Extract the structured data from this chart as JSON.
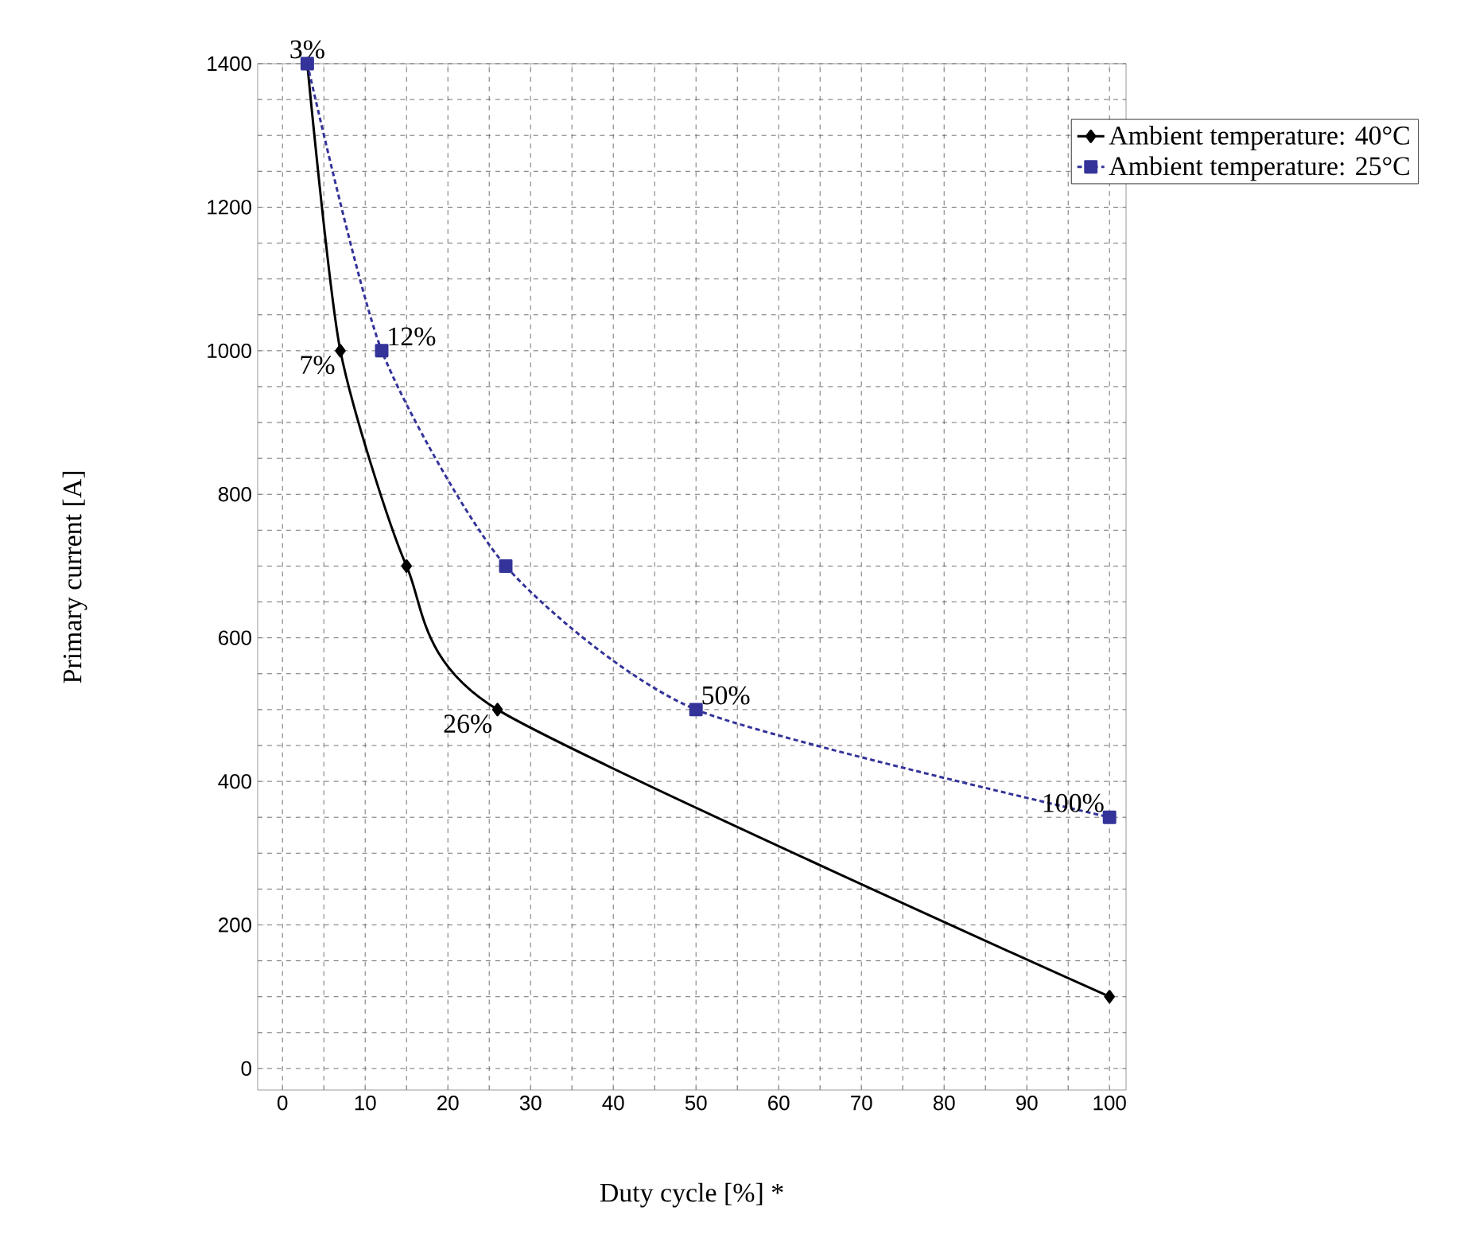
{
  "chart_data": {
    "type": "line",
    "xlabel": "Duty cycle [%] *",
    "ylabel": "Primary current [A]",
    "xlim": [
      -3,
      102
    ],
    "ylim": [
      -30,
      1400
    ],
    "xticks": [
      0,
      10,
      20,
      30,
      40,
      50,
      60,
      70,
      80,
      90,
      100
    ],
    "yticks": [
      0,
      200,
      400,
      600,
      800,
      1000,
      1200,
      1400
    ],
    "grid": true,
    "legend": "top right",
    "series": [
      {
        "name": "Ambient temperature: 40°C",
        "color": "#000000",
        "x": [
          3,
          7,
          15,
          26,
          100
        ],
        "values": [
          1400,
          1000,
          700,
          500,
          100
        ],
        "marker": "diamond",
        "line_style": "solid"
      },
      {
        "name": "Ambient temperature: 25°C",
        "color": "#333399",
        "x": [
          3,
          12,
          27,
          50,
          100
        ],
        "values": [
          1400,
          1000,
          700,
          500,
          350
        ],
        "marker": "square",
        "line_style": "dotted"
      }
    ],
    "annotations": [
      {
        "text": "3%",
        "x": 3,
        "y": 1400
      },
      {
        "text": "12%",
        "x": 12,
        "y": 1000
      },
      {
        "text": "7%",
        "x": 7,
        "y": 1000
      },
      {
        "text": "26%",
        "x": 26,
        "y": 500
      },
      {
        "text": "50%",
        "x": 50,
        "y": 500
      },
      {
        "text": "100%",
        "x": 100,
        "y": 350
      }
    ]
  }
}
